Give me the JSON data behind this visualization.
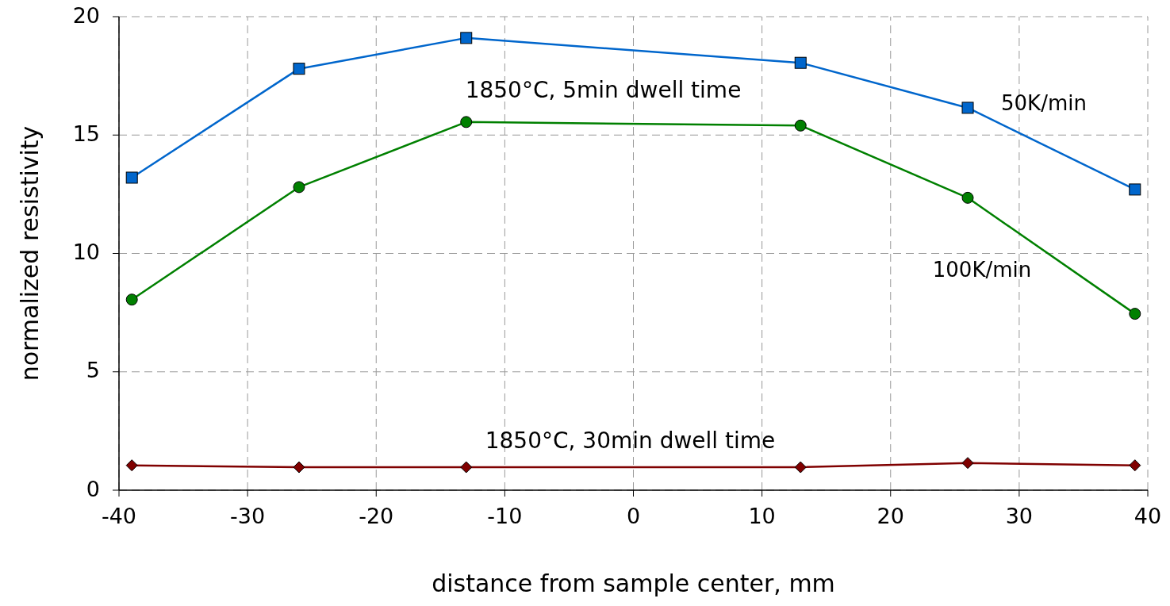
{
  "chart_data": {
    "type": "line",
    "xlabel": "distance from sample center, mm",
    "ylabel": "normalized resistivity",
    "xlim": [
      -40,
      40
    ],
    "xticks": [
      -40,
      -30,
      -20,
      -10,
      0,
      10,
      20,
      30,
      40
    ],
    "ylim": [
      0,
      20
    ],
    "yticks": [
      0,
      5,
      10,
      15,
      20
    ],
    "grid": true,
    "x": [
      -39,
      -26,
      -13,
      13,
      26,
      39
    ],
    "series": [
      {
        "name": "50K/min",
        "color": "#0066cc",
        "marker": "square",
        "values": [
          13.2,
          17.8,
          19.1,
          18.05,
          16.15,
          12.7
        ]
      },
      {
        "name": "100K/min",
        "color": "#008000",
        "marker": "circle",
        "values": [
          8.05,
          12.8,
          15.55,
          15.4,
          12.35,
          7.45
        ]
      },
      {
        "color": "#800000",
        "marker": "diamond",
        "values": [
          1.05,
          0.97,
          0.97,
          0.97,
          1.15,
          1.05
        ]
      }
    ],
    "annotations": [
      "1850°C, 5min dwell time",
      "1850°C, 30min dwell time"
    ]
  }
}
